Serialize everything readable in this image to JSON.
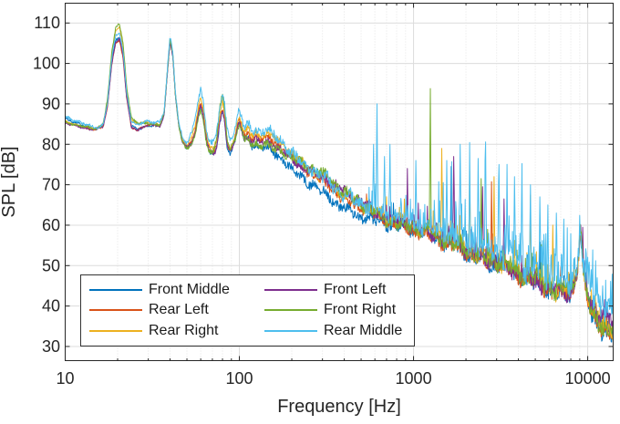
{
  "figure": {
    "background": "#ffffff"
  },
  "chart_data": {
    "type": "line",
    "title": "",
    "xlabel": "Frequency [Hz]",
    "ylabel": "SPL [dB]",
    "x_scale": "log",
    "xlim": [
      10,
      14000
    ],
    "ylim": [
      26.5,
      114.9
    ],
    "x_ticks": [
      10,
      100,
      1000,
      10000
    ],
    "x_tick_labels": [
      "10",
      "100",
      "1000",
      "10000"
    ],
    "y_ticks": [
      30,
      40,
      50,
      60,
      70,
      80,
      90,
      100,
      110
    ],
    "y_tick_labels": [
      "30",
      "40",
      "50",
      "60",
      "70",
      "80",
      "90",
      "100",
      "110"
    ],
    "grid": {
      "major": true,
      "minor_x": true,
      "major_color": "#dcdcdc",
      "minor_color": "#e4e4e4",
      "axis_color": "#262626",
      "tick_color": "#262626"
    },
    "legend": {
      "position": "southwest-inside",
      "columns": 2
    },
    "base_envelope": [
      [
        10,
        86
      ],
      [
        11.5,
        85
      ],
      [
        13,
        84.3
      ],
      [
        15,
        83.8
      ],
      [
        16.5,
        84.6
      ],
      [
        17.5,
        90
      ],
      [
        18.5,
        101
      ],
      [
        19.5,
        106.8
      ],
      [
        20.5,
        107.4
      ],
      [
        21.5,
        103
      ],
      [
        22.5,
        93
      ],
      [
        24,
        85
      ],
      [
        26,
        84.3
      ],
      [
        28,
        84.8
      ],
      [
        30,
        85.3
      ],
      [
        33,
        84.8
      ],
      [
        35,
        84.6
      ],
      [
        37,
        87.5
      ],
      [
        38.5,
        97
      ],
      [
        40,
        105.8
      ],
      [
        41.5,
        102
      ],
      [
        43,
        92
      ],
      [
        45,
        84.5
      ],
      [
        47,
        81
      ],
      [
        50,
        79.2
      ],
      [
        53,
        80.6
      ],
      [
        56,
        84
      ],
      [
        58,
        88
      ],
      [
        60,
        90.3
      ],
      [
        62,
        88
      ],
      [
        65,
        81
      ],
      [
        68,
        78.6
      ],
      [
        71,
        78
      ],
      [
        74,
        80
      ],
      [
        77,
        86
      ],
      [
        80,
        89.3
      ],
      [
        82,
        87
      ],
      [
        85,
        81
      ],
      [
        88,
        79
      ],
      [
        91,
        79.6
      ],
      [
        95,
        82
      ],
      [
        98,
        85.5
      ],
      [
        100,
        86.3
      ],
      [
        103,
        84.5
      ],
      [
        107,
        82
      ],
      [
        112,
        83
      ],
      [
        118,
        81.5
      ],
      [
        125,
        82
      ],
      [
        132,
        81
      ],
      [
        140,
        81.5
      ],
      [
        150,
        81
      ],
      [
        160,
        80
      ],
      [
        170,
        79.5
      ],
      [
        180,
        78.5
      ],
      [
        190,
        77.5
      ],
      [
        200,
        76.5
      ],
      [
        215,
        75.5
      ],
      [
        230,
        74.5
      ],
      [
        250,
        73.5
      ],
      [
        270,
        72.5
      ],
      [
        290,
        71.5
      ],
      [
        320,
        70.5
      ],
      [
        350,
        69
      ],
      [
        380,
        67.5
      ],
      [
        420,
        66.5
      ],
      [
        460,
        65.5
      ],
      [
        500,
        65
      ],
      [
        550,
        64
      ],
      [
        600,
        63
      ],
      [
        660,
        62.2
      ],
      [
        720,
        61.5
      ],
      [
        800,
        60.8
      ],
      [
        900,
        60
      ],
      [
        1000,
        59.5
      ],
      [
        1100,
        59
      ],
      [
        1250,
        58.2
      ],
      [
        1400,
        57
      ],
      [
        1600,
        55.8
      ],
      [
        1800,
        54.8
      ],
      [
        2000,
        53.8
      ],
      [
        2200,
        53
      ],
      [
        2500,
        52
      ],
      [
        2800,
        51.2
      ],
      [
        3200,
        50.2
      ],
      [
        3600,
        49.2
      ],
      [
        4000,
        48.2
      ],
      [
        4500,
        47.2
      ],
      [
        5000,
        46.2
      ],
      [
        5500,
        45.4
      ],
      [
        6000,
        44.6
      ],
      [
        6500,
        44
      ],
      [
        7000,
        43.4
      ],
      [
        7500,
        43
      ],
      [
        8000,
        43.5
      ],
      [
        8400,
        45.5
      ],
      [
        8700,
        49
      ],
      [
        8900,
        54
      ],
      [
        9050,
        59.5
      ],
      [
        9200,
        55.5
      ],
      [
        9400,
        49.5
      ],
      [
        9700,
        45
      ],
      [
        10000,
        42
      ],
      [
        10400,
        39.5
      ],
      [
        10800,
        38
      ],
      [
        11500,
        36.8
      ],
      [
        12200,
        35.8
      ],
      [
        13000,
        35
      ],
      [
        13900,
        34.3
      ]
    ],
    "noise_profile": [
      [
        10,
        0.25
      ],
      [
        40,
        0.3
      ],
      [
        60,
        0.5
      ],
      [
        100,
        0.7
      ],
      [
        200,
        1.0
      ],
      [
        400,
        1.2
      ],
      [
        700,
        1.3
      ],
      [
        1500,
        1.5
      ],
      [
        3000,
        1.8
      ],
      [
        6000,
        2.0
      ],
      [
        9000,
        1.6
      ],
      [
        11000,
        2.0
      ],
      [
        14000,
        2.2
      ]
    ],
    "series": [
      {
        "name": "Front Middle",
        "color": "#0072BD",
        "seed": 101,
        "noise_scale": 1.05,
        "spike_prob": 0.03,
        "offsets": [
          [
            10,
            0.5
          ],
          [
            16,
            0
          ],
          [
            20,
            -0.9
          ],
          [
            30,
            -0.5
          ],
          [
            40,
            0
          ],
          [
            50,
            -0.5
          ],
          [
            60,
            -0.8
          ],
          [
            80,
            -1
          ],
          [
            100,
            -0.8
          ],
          [
            130,
            -2
          ],
          [
            170,
            -2.5
          ],
          [
            250,
            -2.8
          ],
          [
            400,
            -3
          ],
          [
            550,
            -2.5
          ],
          [
            700,
            -1.2
          ],
          [
            1000,
            -0.5
          ],
          [
            2000,
            -0.5
          ],
          [
            5000,
            -0.6
          ],
          [
            8000,
            -0.3
          ],
          [
            9050,
            0
          ],
          [
            10000,
            -1
          ],
          [
            11000,
            -1.5
          ],
          [
            13900,
            -1.3
          ]
        ],
        "spikes": [
          [
            1650,
            74.5
          ]
        ],
        "micro_spikes": {
          "range": [
            1500,
            13500
          ],
          "count": 26,
          "amp": [
            1,
            4.5
          ]
        }
      },
      {
        "name": "Rear Left",
        "color": "#D95319",
        "seed": 202,
        "noise_scale": 0.9,
        "spike_prob": 0.02,
        "offsets": [
          [
            10,
            -0.4
          ],
          [
            16,
            -0.2
          ],
          [
            20,
            -1.8
          ],
          [
            30,
            -0.3
          ],
          [
            40,
            0.2
          ],
          [
            50,
            0
          ],
          [
            60,
            0.2
          ],
          [
            80,
            -0.5
          ],
          [
            100,
            -0.3
          ],
          [
            150,
            0.3
          ],
          [
            250,
            -0.3
          ],
          [
            500,
            -0.5
          ],
          [
            1000,
            -0.8
          ],
          [
            3000,
            -0.6
          ],
          [
            8000,
            -0.4
          ],
          [
            10000,
            -0.8
          ],
          [
            13900,
            -1
          ]
        ],
        "spikes": [
          [
            2800,
            68
          ]
        ],
        "micro_spikes": {
          "range": [
            1500,
            13000
          ],
          "count": 18,
          "amp": [
            1,
            4
          ]
        }
      },
      {
        "name": "Rear Right",
        "color": "#EDB120",
        "seed": 303,
        "noise_scale": 1.0,
        "spike_prob": 0.035,
        "offsets": [
          [
            10,
            -0.2
          ],
          [
            16,
            0.1
          ],
          [
            20,
            1.6
          ],
          [
            30,
            0.2
          ],
          [
            40,
            0.3
          ],
          [
            50,
            0.5
          ],
          [
            60,
            1.1
          ],
          [
            80,
            0.8
          ],
          [
            100,
            0.4
          ],
          [
            150,
            1.3
          ],
          [
            250,
            0.6
          ],
          [
            500,
            0.3
          ],
          [
            1000,
            0.4
          ],
          [
            3000,
            0.5
          ],
          [
            8000,
            0.2
          ],
          [
            10000,
            0
          ],
          [
            13900,
            0.3
          ]
        ],
        "spikes": [
          [
            1450,
            79
          ],
          [
            2100,
            73.5
          ],
          [
            2900,
            72
          ],
          [
            4700,
            67.5
          ],
          [
            6300,
            60
          ]
        ],
        "micro_spikes": {
          "range": [
            1300,
            13200
          ],
          "count": 26,
          "amp": [
            1,
            5.5
          ]
        }
      },
      {
        "name": "Front Left",
        "color": "#7E2F8E",
        "seed": 404,
        "noise_scale": 1.0,
        "spike_prob": 0.03,
        "offsets": [
          [
            10,
            -0.7
          ],
          [
            16,
            -0.1
          ],
          [
            20,
            -1.4
          ],
          [
            30,
            -0.4
          ],
          [
            40,
            -0.2
          ],
          [
            50,
            -0.3
          ],
          [
            60,
            -0.7
          ],
          [
            80,
            -0.8
          ],
          [
            100,
            -0.9
          ],
          [
            150,
            -0.8
          ],
          [
            250,
            0.2
          ],
          [
            350,
            1
          ],
          [
            450,
            1.2
          ],
          [
            600,
            0.4
          ],
          [
            1000,
            0
          ],
          [
            3000,
            0.1
          ],
          [
            8000,
            0
          ],
          [
            9500,
            0.5
          ],
          [
            10500,
            1.2
          ],
          [
            12000,
            1.8
          ],
          [
            13900,
            2
          ]
        ],
        "spikes": [
          [
            920,
            72
          ],
          [
            1700,
            77
          ],
          [
            2500,
            69.5
          ],
          [
            3300,
            66.5
          ]
        ],
        "micro_spikes": {
          "range": [
            900,
            13500
          ],
          "count": 22,
          "amp": [
            1,
            5
          ]
        }
      },
      {
        "name": "Front Right",
        "color": "#77AC30",
        "seed": 505,
        "noise_scale": 1.05,
        "spike_prob": 0.025,
        "offsets": [
          [
            10,
            -0.4
          ],
          [
            16,
            0.2
          ],
          [
            20,
            2.4
          ],
          [
            30,
            0
          ],
          [
            40,
            0.4
          ],
          [
            50,
            -0.6
          ],
          [
            60,
            -1.8
          ],
          [
            70,
            -0.5
          ],
          [
            77,
            2.6
          ],
          [
            80,
            3
          ],
          [
            85,
            1
          ],
          [
            100,
            -1.4
          ],
          [
            150,
            -1.6
          ],
          [
            220,
            0.5
          ],
          [
            300,
            1.6
          ],
          [
            380,
            1.3
          ],
          [
            500,
            0.6
          ],
          [
            700,
            -0.4
          ],
          [
            1000,
            0
          ],
          [
            3000,
            0
          ],
          [
            8000,
            0.6
          ],
          [
            9050,
            1
          ],
          [
            9800,
            0
          ],
          [
            11000,
            -0.6
          ],
          [
            13900,
            -0.5
          ]
        ],
        "spikes": [
          [
            1250,
            93.8
          ],
          [
            2450,
            68
          ]
        ],
        "micro_spikes": {
          "range": [
            1200,
            13500
          ],
          "count": 20,
          "amp": [
            1,
            4.5
          ]
        }
      },
      {
        "name": "Rear Middle",
        "color": "#4DBEEE",
        "seed": 606,
        "noise_scale": 1.25,
        "spike_prob": 0.1,
        "offsets": [
          [
            10,
            1
          ],
          [
            16,
            0.3
          ],
          [
            20,
            0.1
          ],
          [
            30,
            0.6
          ],
          [
            40,
            0.8
          ],
          [
            50,
            1
          ],
          [
            56,
            2.5
          ],
          [
            60,
            3.4
          ],
          [
            65,
            2
          ],
          [
            74,
            2.5
          ],
          [
            80,
            3.4
          ],
          [
            90,
            2.2
          ],
          [
            100,
            2
          ],
          [
            150,
            2
          ],
          [
            250,
            0.8
          ],
          [
            400,
            0.5
          ],
          [
            700,
            0.8
          ],
          [
            1000,
            1
          ],
          [
            2000,
            2
          ],
          [
            4000,
            2.4
          ],
          [
            6000,
            2.4
          ],
          [
            8000,
            1.2
          ],
          [
            9050,
            1.2
          ],
          [
            9800,
            2
          ],
          [
            10500,
            3
          ],
          [
            12000,
            4.2
          ],
          [
            13900,
            5
          ]
        ],
        "spikes": [
          [
            590,
            80
          ],
          [
            615,
            90
          ],
          [
            680,
            77
          ],
          [
            730,
            80
          ],
          [
            1030,
            76
          ],
          [
            1550,
            76
          ],
          [
            1850,
            80
          ],
          [
            2100,
            75
          ],
          [
            2350,
            76.5
          ],
          [
            2600,
            73
          ],
          [
            3100,
            75
          ],
          [
            3450,
            70.5
          ],
          [
            3800,
            72
          ],
          [
            4200,
            69
          ],
          [
            4700,
            70
          ],
          [
            5300,
            67
          ],
          [
            5900,
            65
          ],
          [
            6600,
            63
          ],
          [
            7300,
            61.5
          ],
          [
            9800,
            53
          ],
          [
            10500,
            49
          ],
          [
            11300,
            47
          ],
          [
            12200,
            45
          ]
        ],
        "micro_spikes": {
          "range": [
            1400,
            13500
          ],
          "count": 60,
          "amp": [
            2,
            8
          ]
        }
      }
    ]
  }
}
